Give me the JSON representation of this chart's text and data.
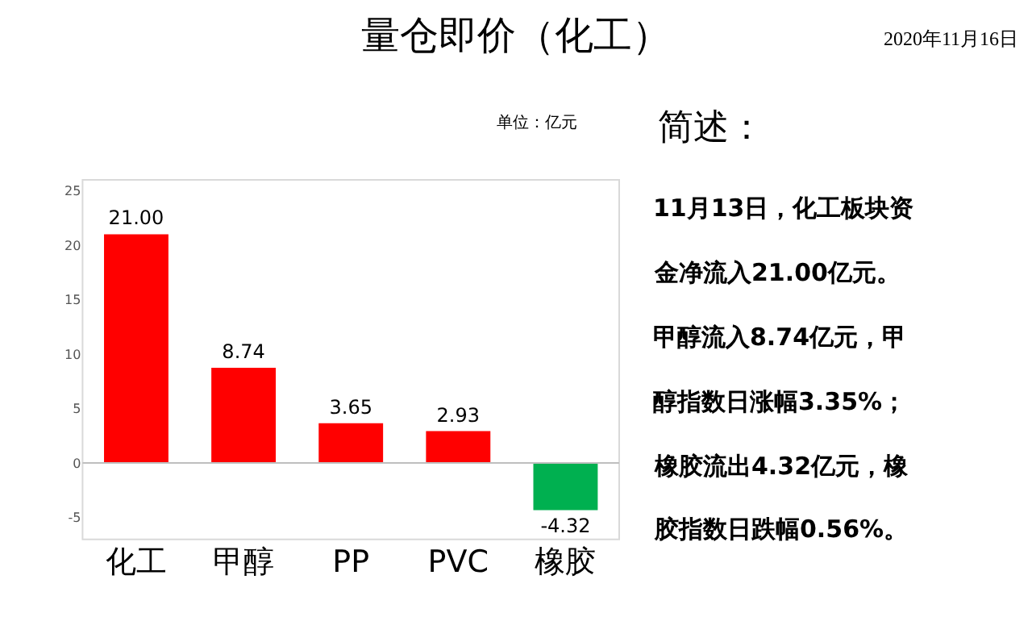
{
  "chart_data": {
    "type": "bar",
    "title": "量仓即价（化工）",
    "subtitle": "单位：亿元",
    "categories": [
      "化工",
      "甲醇",
      "PP",
      "PVC",
      "橡胶"
    ],
    "values": [
      21.0,
      8.74,
      3.65,
      2.93,
      -4.32
    ],
    "colors": [
      "#ff0000",
      "#ff0000",
      "#ff0000",
      "#ff0000",
      "#00b050"
    ],
    "value_labels": [
      "21.00",
      "8.74",
      "3.65",
      "2.93",
      "-4.32"
    ],
    "ylim": [
      -7,
      26
    ],
    "yticks": [
      -5,
      0,
      5,
      10,
      15,
      20,
      25
    ],
    "ref_lines": [
      {
        "axis": "y",
        "value": 0,
        "color": "#bfbfbf"
      }
    ],
    "annotations": [
      "2020年11月16日",
      "简述：",
      "11月13日，化工板块资",
      "金净流入21.00亿元。",
      "甲醇流入8.74亿元，甲",
      "醇指数日涨幅3.35%；",
      "橡胶流出4.32亿元，橡",
      "胶指数日跌幅0.56%。"
    ]
  }
}
